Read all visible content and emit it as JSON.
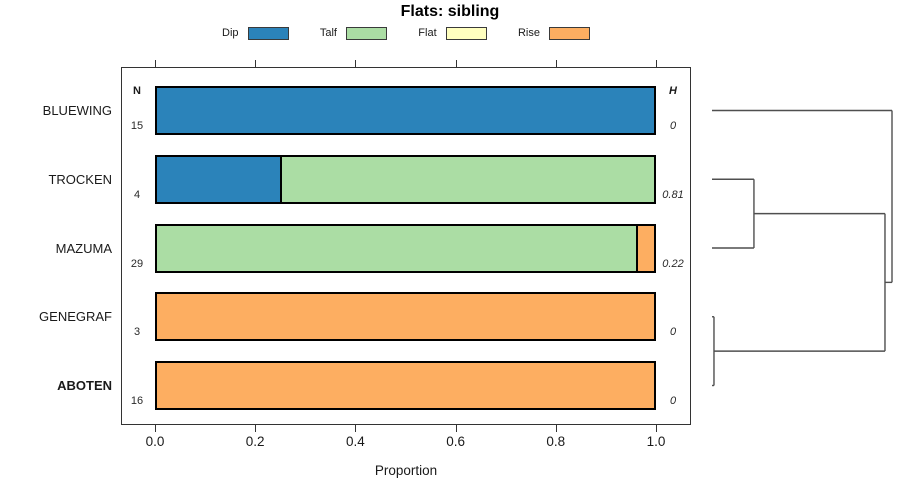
{
  "title": "Flats: sibling",
  "legend": {
    "items": [
      {
        "label": "Dip",
        "color": "#2B83BA"
      },
      {
        "label": "Talf",
        "color": "#ABDDA4"
      },
      {
        "label": "Flat",
        "color": "#FFFFBF"
      },
      {
        "label": "Rise",
        "color": "#FDAE61"
      }
    ]
  },
  "chart_data": {
    "type": "bar",
    "orientation": "horizontal",
    "stacked": true,
    "title": "Flats: sibling",
    "xlabel": "Proportion",
    "xlim": [
      0.0,
      1.0
    ],
    "xticks": [
      0.0,
      0.2,
      0.4,
      0.6,
      0.8,
      1.0
    ],
    "xtick_labels": [
      "0.0",
      "0.2",
      "0.4",
      "0.6",
      "0.8",
      "1.0"
    ],
    "categories": [
      "BLUEWING",
      "TROCKEN",
      "MAZUMA",
      "GENEGRAF",
      "ABOTEN"
    ],
    "bold_category": "ABOTEN",
    "series": [
      {
        "name": "Dip",
        "color": "#2B83BA",
        "values": [
          1.0,
          0.25,
          0.0,
          0.0,
          0.0
        ]
      },
      {
        "name": "Talf",
        "color": "#ABDDA4",
        "values": [
          0.0,
          0.75,
          0.9655,
          0.0,
          0.0
        ]
      },
      {
        "name": "Flat",
        "color": "#FFFFBF",
        "values": [
          0.0,
          0.0,
          0.0,
          0.0,
          0.0
        ]
      },
      {
        "name": "Rise",
        "color": "#FDAE61",
        "values": [
          0.0,
          0.0,
          0.0345,
          1.0,
          1.0
        ]
      }
    ],
    "n_column": {
      "header": "N",
      "values": [
        "15",
        "4",
        "29",
        "3",
        "16"
      ]
    },
    "h_column": {
      "header": "H",
      "values": [
        "0",
        "0.81",
        "0.22",
        "0",
        "0"
      ]
    },
    "dendrogram": {
      "axis_range": [
        0,
        1
      ],
      "tree": {
        "height": 1.0,
        "children": [
          {
            "leaf": "BLUEWING"
          },
          {
            "height": 0.961,
            "children": [
              {
                "height": 0.233,
                "children": [
                  {
                    "leaf": "TROCKEN"
                  },
                  {
                    "leaf": "MAZUMA"
                  }
                ]
              },
              {
                "height": 0.011,
                "children": [
                  {
                    "leaf": "GENEGRAF"
                  },
                  {
                    "leaf": "ABOTEN"
                  }
                ]
              }
            ]
          }
        ]
      }
    }
  }
}
